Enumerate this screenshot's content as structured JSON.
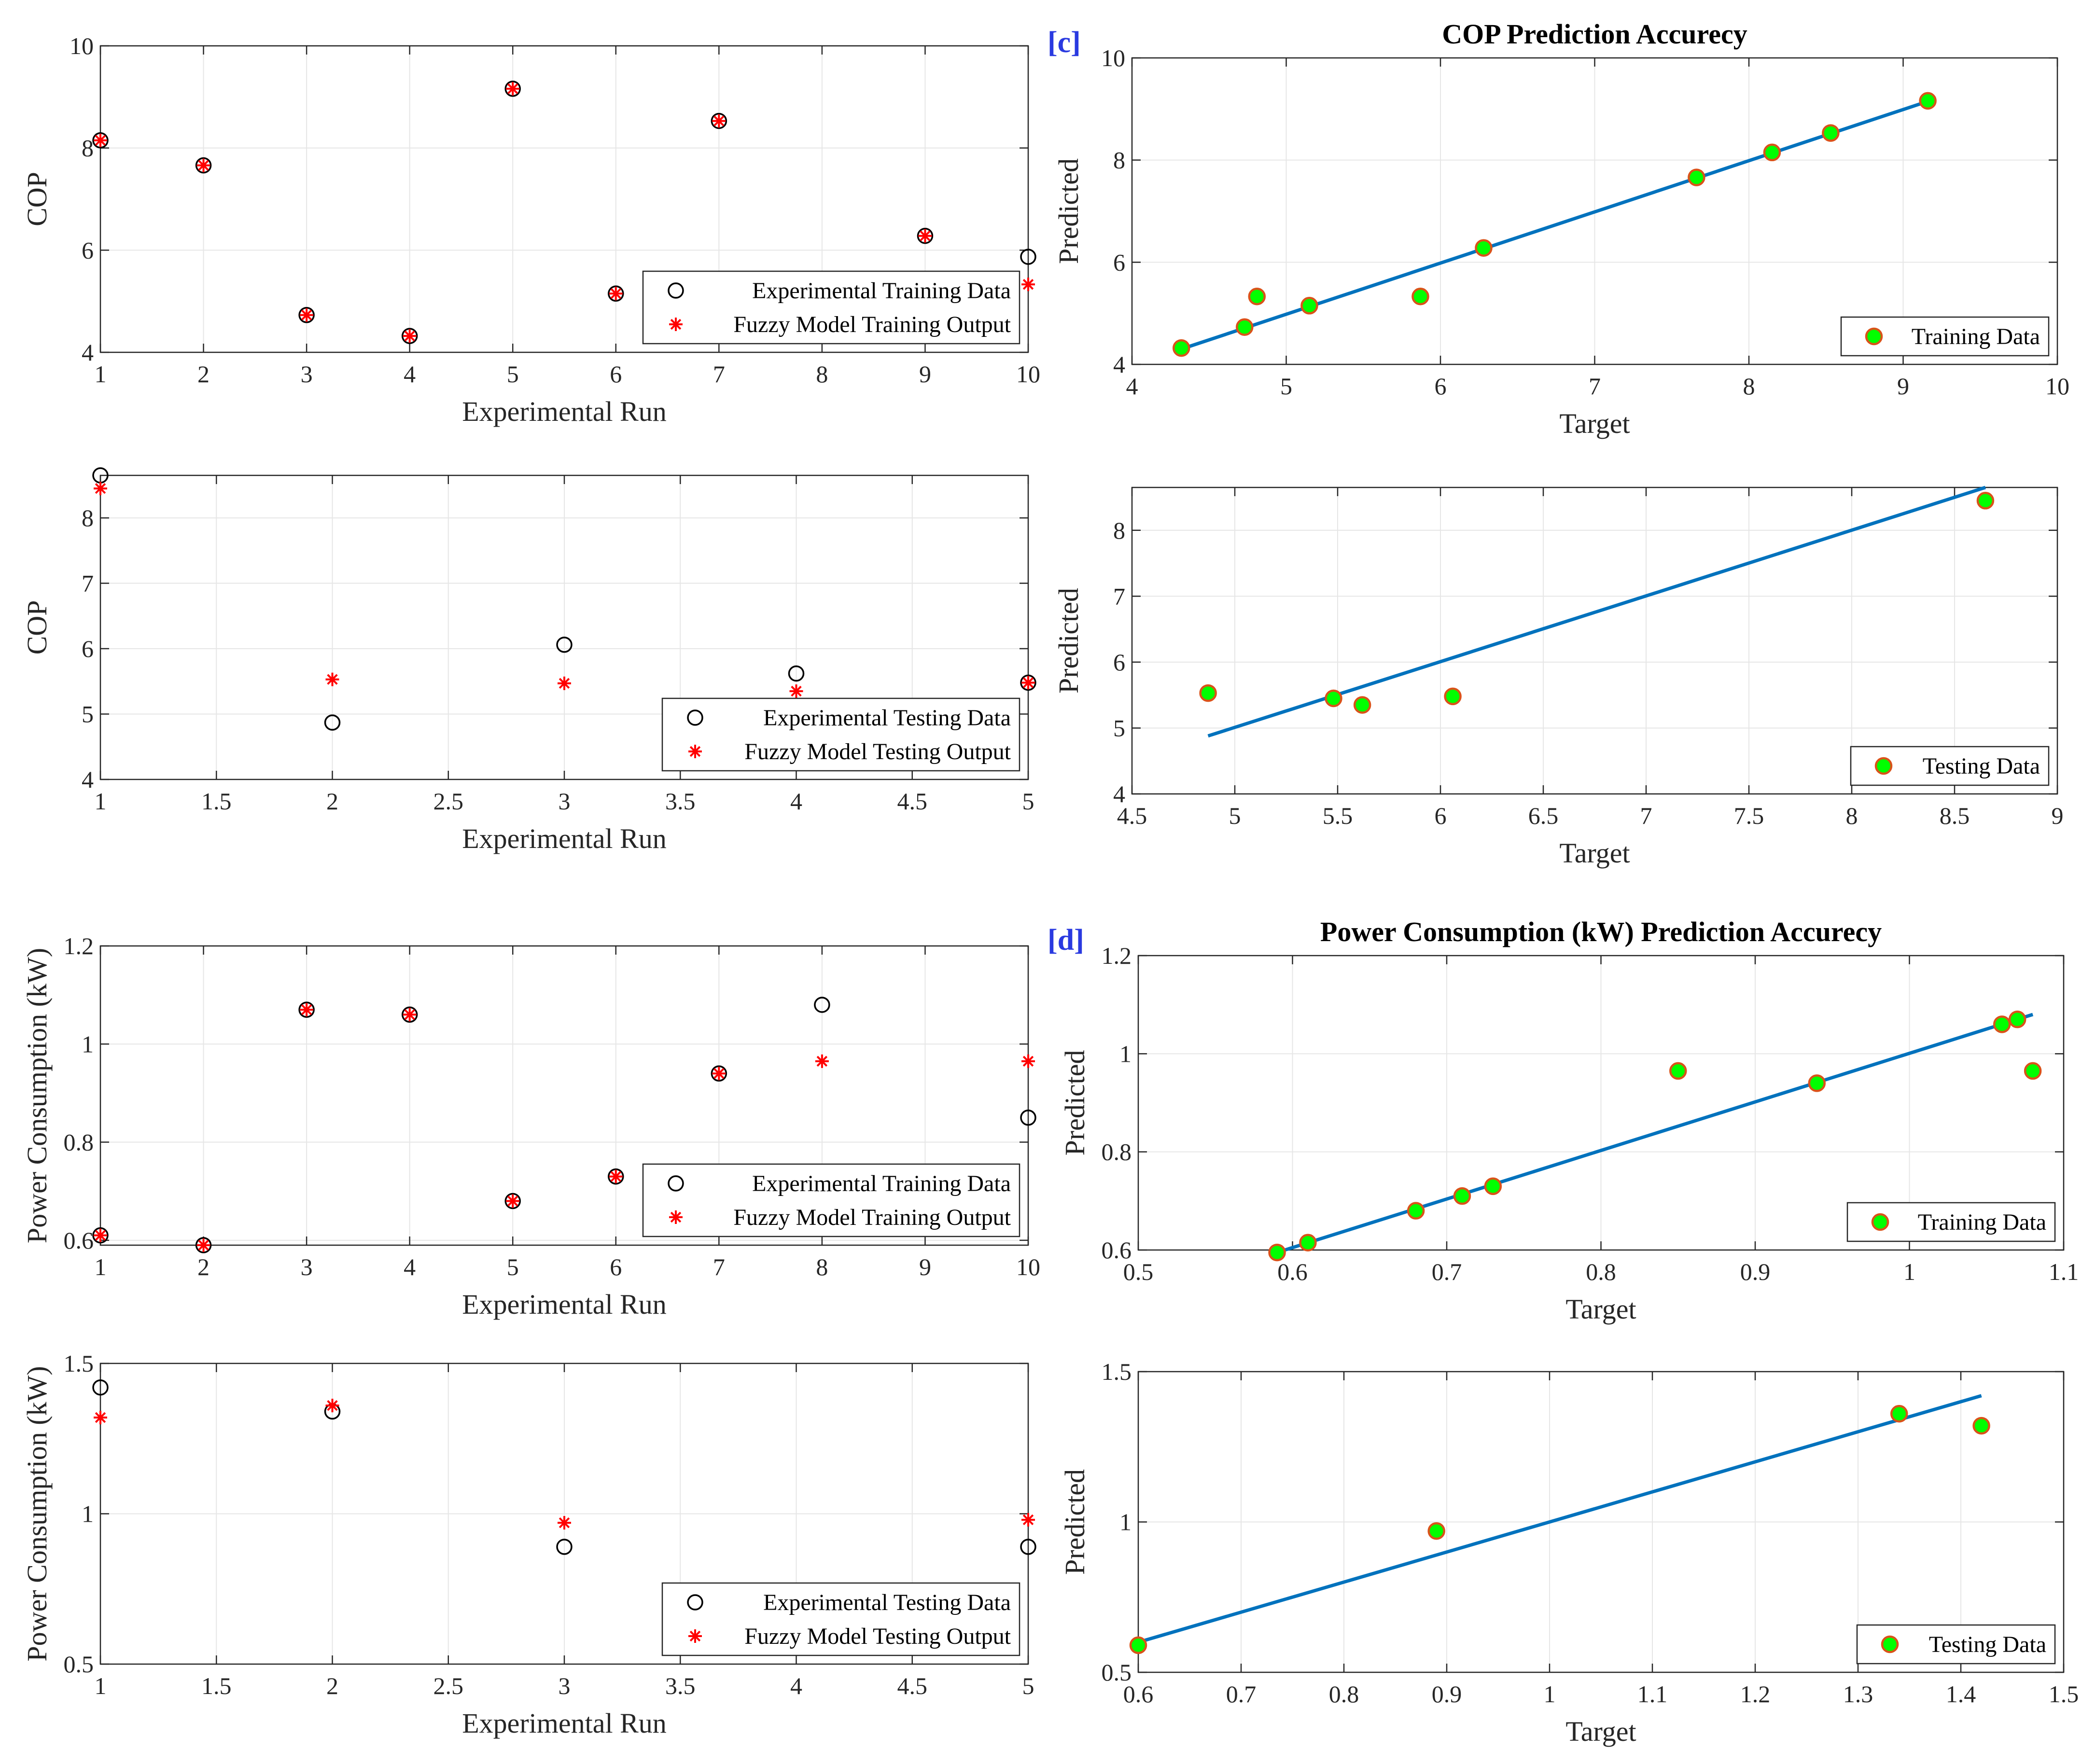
{
  "panel_labels": {
    "c": "[c]",
    "d": "[d]"
  },
  "colors": {
    "exp_marker": "#000000",
    "fuzzy_marker": "#ff0000",
    "fit_line": "#0072bd",
    "scatter_fill": "#00ff00",
    "scatter_edge": "#d95319",
    "grid": "#e6e6e6",
    "axis": "#262626"
  },
  "chart_data": [
    {
      "id": "cop-train-run",
      "type": "scatter",
      "xlabel": "Experimental Run",
      "ylabel": "COP",
      "xlim": [
        1,
        10
      ],
      "ylim": [
        4,
        10
      ],
      "xticks": [
        1,
        2,
        3,
        4,
        5,
        6,
        7,
        8,
        9,
        10
      ],
      "xtick_labels": [
        "1",
        "2",
        "3",
        "4",
        "5",
        "6",
        "7",
        "8",
        "9",
        "10"
      ],
      "yticks": [
        4,
        6,
        8,
        10
      ],
      "ytick_labels": [
        "4",
        "6",
        "8",
        "10"
      ],
      "legend_position": "bottom-right",
      "series": [
        {
          "name": "Experimental Training Data",
          "marker": "circle",
          "x": [
            1,
            2,
            3,
            4,
            5,
            6,
            7,
            9,
            10
          ],
          "y": [
            8.15,
            7.66,
            4.73,
            4.32,
            9.16,
            5.15,
            8.53,
            6.28,
            5.87
          ]
        },
        {
          "name": "Fuzzy Model Training Output",
          "marker": "star",
          "x": [
            1,
            2,
            3,
            4,
            5,
            6,
            7,
            9,
            10
          ],
          "y": [
            8.15,
            7.66,
            4.73,
            4.32,
            9.16,
            5.15,
            8.53,
            6.28,
            5.33
          ]
        }
      ]
    },
    {
      "id": "cop-test-run",
      "type": "scatter",
      "xlabel": "Experimental Run",
      "ylabel": "COP",
      "xlim": [
        1,
        5
      ],
      "ylim": [
        4,
        8.65
      ],
      "xticks": [
        1,
        1.5,
        2,
        2.5,
        3,
        3.5,
        4,
        4.5,
        5
      ],
      "xtick_labels": [
        "1",
        "1.5",
        "2",
        "2.5",
        "3",
        "3.5",
        "4",
        "4.5",
        "5"
      ],
      "yticks": [
        4,
        5,
        6,
        7,
        8
      ],
      "ytick_labels": [
        "4",
        "5",
        "6",
        "7",
        "8"
      ],
      "legend_position": "bottom-right",
      "series": [
        {
          "name": "Experimental Testing Data",
          "marker": "circle",
          "x": [
            1,
            2,
            3,
            4,
            5
          ],
          "y": [
            8.65,
            4.87,
            6.06,
            5.62,
            5.48
          ]
        },
        {
          "name": "Fuzzy Model Testing Output",
          "marker": "star",
          "x": [
            1,
            2,
            3,
            4,
            5
          ],
          "y": [
            8.45,
            5.53,
            5.47,
            5.35,
            5.48
          ]
        }
      ]
    },
    {
      "id": "power-train-run",
      "type": "scatter",
      "xlabel": "Experimental Run",
      "ylabel": "Power Consumption (kW)",
      "xlim": [
        1,
        10
      ],
      "ylim": [
        0.59,
        1.2
      ],
      "xticks": [
        1,
        2,
        3,
        4,
        5,
        6,
        7,
        8,
        9,
        10
      ],
      "xtick_labels": [
        "1",
        "2",
        "3",
        "4",
        "5",
        "6",
        "7",
        "8",
        "9",
        "10"
      ],
      "yticks": [
        0.6,
        0.8,
        1,
        1.2
      ],
      "ytick_labels": [
        "0.6",
        "0.8",
        "1",
        "1.2"
      ],
      "legend_position": "bottom-right",
      "series": [
        {
          "name": "Experimental Training Data",
          "marker": "circle",
          "x": [
            1,
            2,
            3,
            4,
            5,
            6,
            7,
            8,
            10
          ],
          "y": [
            0.61,
            0.59,
            1.07,
            1.06,
            0.68,
            0.73,
            0.94,
            1.08,
            0.85
          ]
        },
        {
          "name": "Fuzzy Model Training Output",
          "marker": "star",
          "x": [
            1,
            2,
            3,
            4,
            5,
            6,
            7,
            8,
            10
          ],
          "y": [
            0.61,
            0.59,
            1.07,
            1.06,
            0.68,
            0.73,
            0.94,
            0.965,
            0.965
          ]
        }
      ]
    },
    {
      "id": "power-test-run",
      "type": "scatter",
      "xlabel": "Experimental Run",
      "ylabel": "Power Consumption (kW)",
      "xlim": [
        1,
        5
      ],
      "ylim": [
        0.5,
        1.5
      ],
      "xticks": [
        1,
        1.5,
        2,
        2.5,
        3,
        3.5,
        4,
        4.5,
        5
      ],
      "xtick_labels": [
        "1",
        "1.5",
        "2",
        "2.5",
        "3",
        "3.5",
        "4",
        "4.5",
        "5"
      ],
      "yticks": [
        0.5,
        1,
        1.5
      ],
      "ytick_labels": [
        "0.5",
        "1",
        "1.5"
      ],
      "legend_position": "bottom-right",
      "series": [
        {
          "name": "Experimental Testing Data",
          "marker": "circle",
          "x": [
            1,
            2,
            3,
            5
          ],
          "y": [
            1.42,
            1.34,
            0.89,
            0.89
          ]
        },
        {
          "name": "Fuzzy Model Testing Output",
          "marker": "star",
          "x": [
            1,
            2,
            3,
            5
          ],
          "y": [
            1.32,
            1.36,
            0.97,
            0.98
          ]
        }
      ]
    },
    {
      "id": "cop-accuracy-train",
      "type": "scatter",
      "title": "COP Prediction Accurecy",
      "xlabel": "Target",
      "ylabel": "Predicted",
      "xlim": [
        4,
        10
      ],
      "ylim": [
        4,
        10
      ],
      "xticks": [
        4,
        5,
        6,
        7,
        8,
        9,
        10
      ],
      "xtick_labels": [
        "4",
        "5",
        "6",
        "7",
        "8",
        "9",
        "10"
      ],
      "yticks": [
        4,
        6,
        8,
        10
      ],
      "ytick_labels": [
        "4",
        "6",
        "8",
        "10"
      ],
      "legend_position": "bottom-right",
      "series": [
        {
          "name": "Training Data",
          "marker": "dot",
          "x": [
            4.32,
            4.73,
            4.81,
            5.15,
            5.87,
            6.28,
            7.66,
            8.15,
            8.53,
            9.16
          ],
          "y": [
            4.32,
            4.73,
            5.33,
            5.15,
            5.33,
            6.28,
            7.66,
            8.15,
            8.53,
            9.16
          ]
        }
      ],
      "fit_line": {
        "x": [
          4.32,
          9.16
        ],
        "y": [
          4.3,
          9.15
        ]
      }
    },
    {
      "id": "cop-accuracy-test",
      "type": "scatter",
      "xlabel": "Target",
      "ylabel": "Predicted",
      "xlim": [
        4.5,
        9
      ],
      "ylim": [
        4,
        8.65
      ],
      "xticks": [
        4.5,
        5,
        5.5,
        6,
        6.5,
        7,
        7.5,
        8,
        8.5,
        9
      ],
      "xtick_labels": [
        "4.5",
        "5",
        "5.5",
        "6",
        "6.5",
        "7",
        "7.5",
        "8",
        "8.5",
        "9"
      ],
      "yticks": [
        4,
        5,
        6,
        7,
        8
      ],
      "ytick_labels": [
        "4",
        "5",
        "6",
        "7",
        "8"
      ],
      "legend_position": "bottom-right",
      "series": [
        {
          "name": "Testing Data",
          "marker": "dot",
          "x": [
            4.87,
            5.48,
            5.62,
            6.06,
            8.65
          ],
          "y": [
            5.53,
            5.45,
            5.35,
            5.48,
            8.45
          ]
        }
      ],
      "fit_line": {
        "x": [
          4.87,
          8.65
        ],
        "y": [
          4.88,
          8.65
        ]
      }
    },
    {
      "id": "power-accuracy-train",
      "type": "scatter",
      "title": "Power Consumption (kW) Prediction Accurecy",
      "xlabel": "Target",
      "ylabel": "Predicted",
      "xlim": [
        0.5,
        1.1
      ],
      "ylim": [
        0.6,
        1.2
      ],
      "xticks": [
        0.5,
        0.6,
        0.7,
        0.8,
        0.9,
        1,
        1.1
      ],
      "xtick_labels": [
        "0.5",
        "0.6",
        "0.7",
        "0.8",
        "0.9",
        "1",
        "1.1"
      ],
      "yticks": [
        0.6,
        0.8,
        1,
        1.2
      ],
      "ytick_labels": [
        "0.6",
        "0.8",
        "1",
        "1.2"
      ],
      "legend_position": "bottom-right",
      "series": [
        {
          "name": "Training Data",
          "marker": "dot",
          "x": [
            0.59,
            0.61,
            0.68,
            0.71,
            0.73,
            0.85,
            0.94,
            1.06,
            1.07,
            1.08
          ],
          "y": [
            0.595,
            0.615,
            0.68,
            0.71,
            0.73,
            0.965,
            0.94,
            1.06,
            1.07,
            0.965
          ]
        }
      ],
      "fit_line": {
        "x": [
          0.59,
          1.08
        ],
        "y": [
          0.595,
          1.08
        ]
      }
    },
    {
      "id": "power-accuracy-test",
      "type": "scatter",
      "xlabel": "Target",
      "ylabel": "Predicted",
      "xlim": [
        0.6,
        1.5
      ],
      "ylim": [
        0.5,
        1.5
      ],
      "xticks": [
        0.6,
        0.7,
        0.8,
        0.9,
        1,
        1.1,
        1.2,
        1.3,
        1.4,
        1.5
      ],
      "xtick_labels": [
        "0.6",
        "0.7",
        "0.8",
        "0.9",
        "1",
        "1.1",
        "1.2",
        "1.3",
        "1.4",
        "1.5"
      ],
      "yticks": [
        0.5,
        1,
        1.5
      ],
      "ytick_labels": [
        "0.5",
        "1",
        "1.5"
      ],
      "legend_position": "bottom-right",
      "series": [
        {
          "name": "Testing Data",
          "marker": "dot",
          "x": [
            0.6,
            0.89,
            1.34,
            1.42
          ],
          "y": [
            0.59,
            0.97,
            1.36,
            1.32
          ]
        }
      ],
      "fit_line": {
        "x": [
          0.6,
          1.42
        ],
        "y": [
          0.6,
          1.42
        ]
      }
    }
  ]
}
